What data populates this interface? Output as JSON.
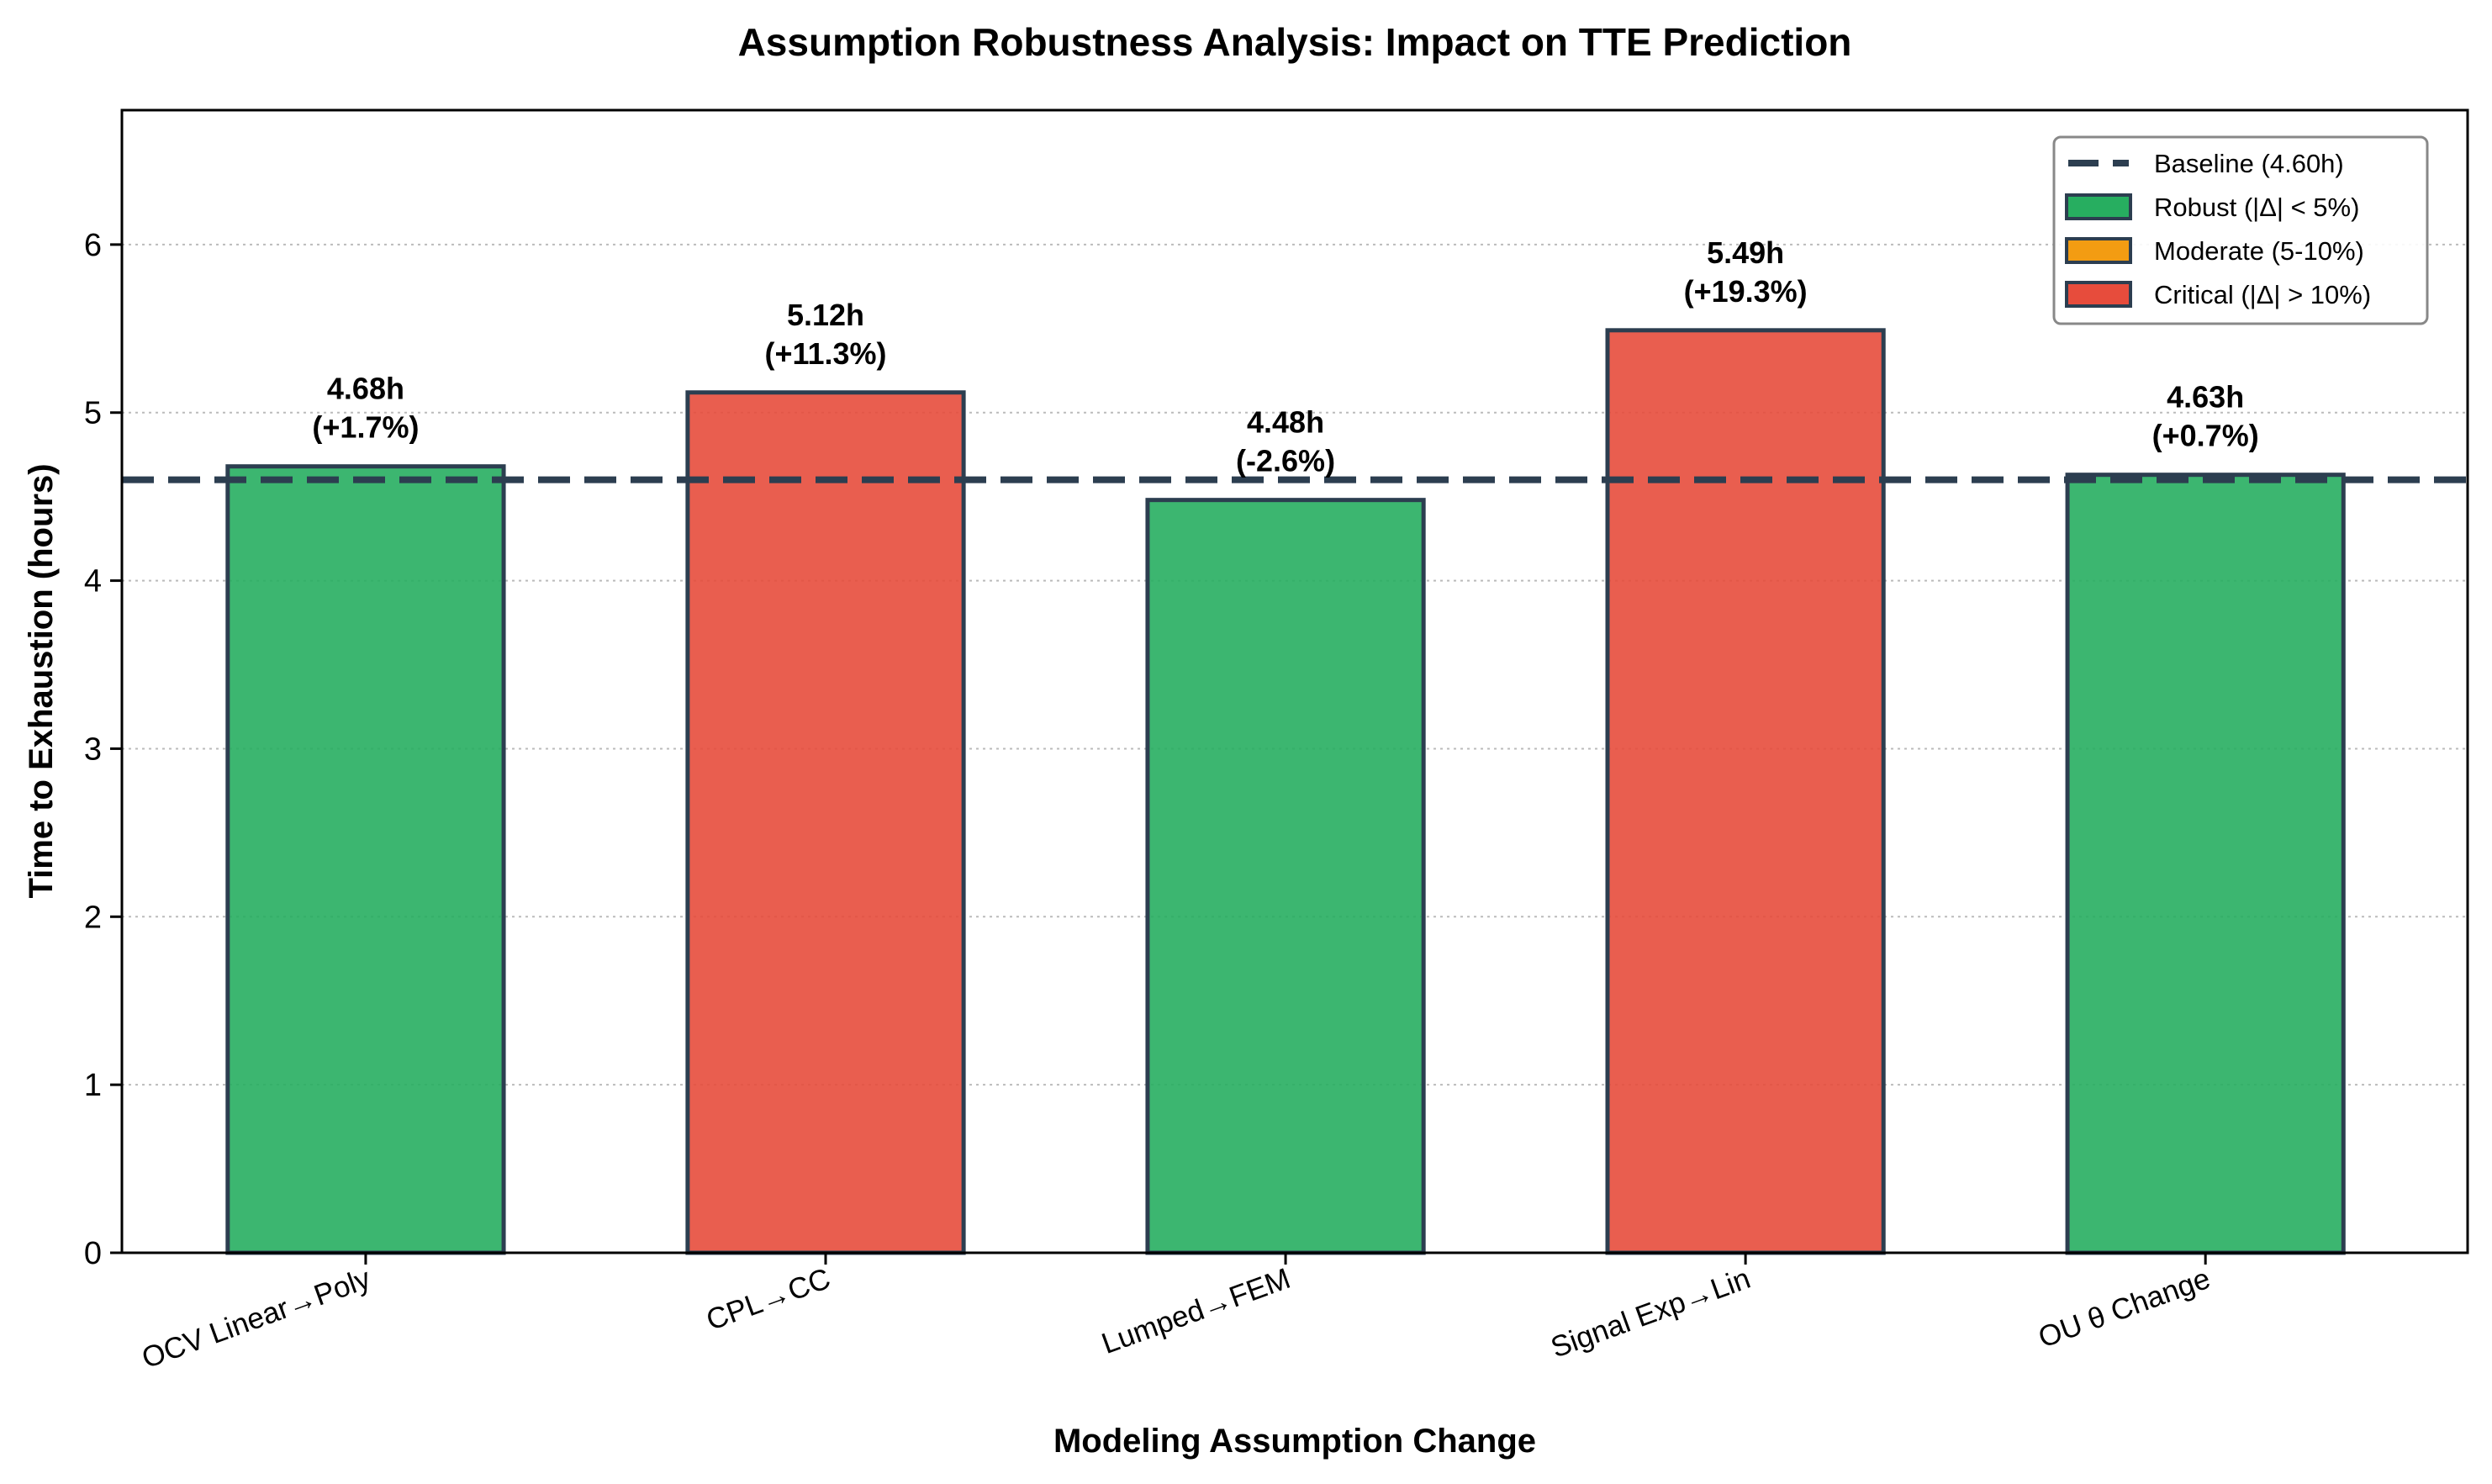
{
  "chart_data": {
    "type": "bar",
    "title": "Assumption Robustness Analysis: Impact on TTE Prediction",
    "xlabel": "Modeling Assumption Change",
    "ylabel": "Time to Exhaustion (hours)",
    "categories": [
      "OCV Linear→Poly",
      "CPL→CC",
      "Lumped→FEM",
      "Signal Exp→Lin",
      "OU θ Change"
    ],
    "values": [
      4.68,
      5.12,
      4.48,
      5.49,
      4.63
    ],
    "pct_change": [
      "+1.7%",
      "+11.3%",
      "-2.6%",
      "+19.3%",
      "+0.7%"
    ],
    "value_labels": [
      "4.68h",
      "5.12h",
      "4.48h",
      "5.49h",
      "4.63h"
    ],
    "pct_labels": [
      "(+1.7%)",
      "(+11.3%)",
      "(-2.6%)",
      "(+19.3%)",
      "(+0.7%)"
    ],
    "bar_class": [
      "robust",
      "critical",
      "robust",
      "critical",
      "robust"
    ],
    "baseline": 4.6,
    "ylim": [
      0,
      6.8
    ],
    "yticks": [
      0,
      1,
      2,
      3,
      4,
      5,
      6
    ],
    "ytick_labels": [
      "0",
      "1",
      "2",
      "3",
      "4",
      "5",
      "6"
    ],
    "grid": "y-dotted",
    "legend_position": "top-right",
    "legend": [
      {
        "key": "baseline",
        "label": "Baseline (4.60h)",
        "kind": "line"
      },
      {
        "key": "robust",
        "label": "Robust (|Δ| < 5%)",
        "kind": "patch"
      },
      {
        "key": "moderate",
        "label": "Moderate (5-10%)",
        "kind": "patch"
      },
      {
        "key": "critical",
        "label": "Critical (|Δ| > 10%)",
        "kind": "patch"
      }
    ],
    "colors": {
      "robust": "#27ae60",
      "moderate": "#f39c12",
      "critical": "#e74c3c",
      "edge": "#2c3e50",
      "baseline": "#2c3e50"
    }
  }
}
